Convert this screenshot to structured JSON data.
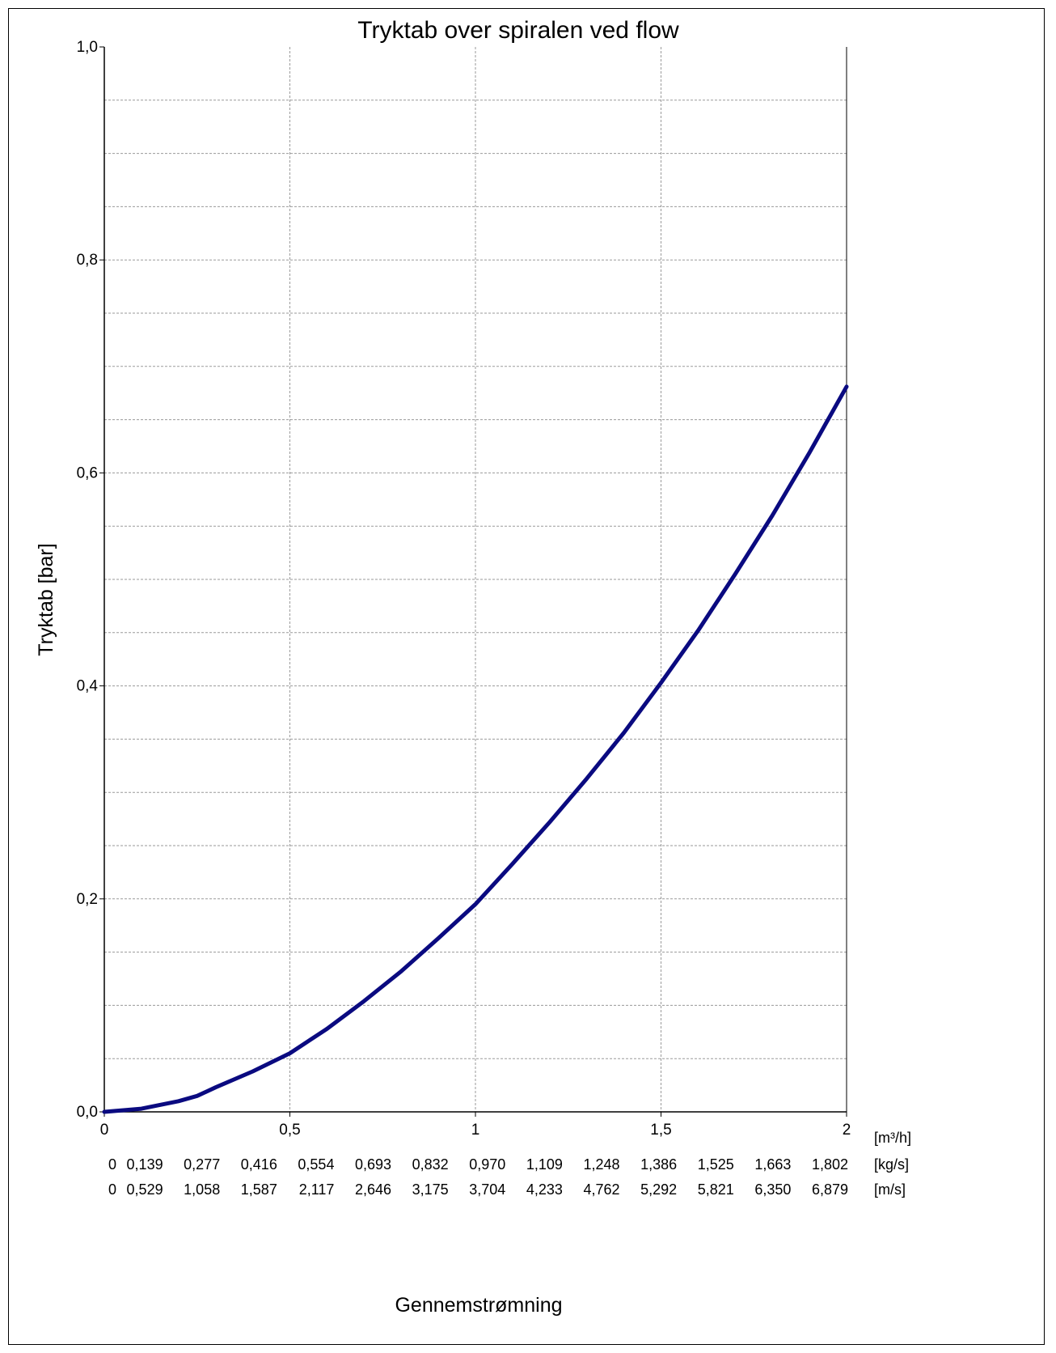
{
  "chart_data": {
    "type": "line",
    "title": "Tryktab over spiralen ved flow",
    "xlabel": "Gennemstrømning",
    "ylabel": "Tryktab [bar]",
    "xlim": [
      0,
      2
    ],
    "ylim": [
      0,
      1
    ],
    "grid": true,
    "line_color": "#0a0a80",
    "x_ticks": [
      "0",
      "0,5",
      "1",
      "1,5",
      "2"
    ],
    "x_tick_values": [
      0,
      0.5,
      1,
      1.5,
      2
    ],
    "y_ticks": [
      "0,0",
      "0,2",
      "0,4",
      "0,6",
      "0,8",
      "1,0"
    ],
    "y_tick_values": [
      0,
      0.2,
      0.4,
      0.6,
      0.8,
      1.0
    ],
    "minor_y_step": 0.05,
    "unit_rows": [
      {
        "unit": "[m³/h]",
        "labels": []
      },
      {
        "unit": "[kg/s]",
        "labels": [
          "0",
          "0,139",
          "0,277",
          "0,416",
          "0,554",
          "0,693",
          "0,832",
          "0,970",
          "1,109",
          "1,248",
          "1,386",
          "1,525",
          "1,663",
          "1,802"
        ],
        "flows": [
          0,
          0.1538,
          0.3077,
          0.4615,
          0.6154,
          0.7692,
          0.9231,
          1.0769,
          1.2308,
          1.3846,
          1.5385,
          1.6923,
          1.8462,
          2.0
        ]
      },
      {
        "unit": "[m/s]",
        "labels": [
          "0",
          "0,529",
          "1,058",
          "1,587",
          "2,117",
          "2,646",
          "3,175",
          "3,704",
          "4,233",
          "4,762",
          "5,292",
          "5,821",
          "6,350",
          "6,879"
        ],
        "flows": [
          0,
          0.1538,
          0.3077,
          0.4615,
          0.6154,
          0.7692,
          0.9231,
          1.0769,
          1.2308,
          1.3846,
          1.5385,
          1.6923,
          1.8462,
          2.0
        ]
      }
    ],
    "series": [
      {
        "x": [
          0,
          0.1,
          0.2,
          0.25,
          0.3,
          0.4,
          0.5,
          0.6,
          0.7,
          0.8,
          0.9,
          1.0,
          1.1,
          1.2,
          1.3,
          1.4,
          1.5,
          1.6,
          1.7,
          1.8,
          1.9,
          2.0
        ],
        "y": [
          0,
          0.003,
          0.01,
          0.015,
          0.023,
          0.038,
          0.055,
          0.078,
          0.104,
          0.132,
          0.163,
          0.195,
          0.233,
          0.272,
          0.313,
          0.356,
          0.403,
          0.452,
          0.505,
          0.56,
          0.619,
          0.681
        ]
      }
    ]
  }
}
